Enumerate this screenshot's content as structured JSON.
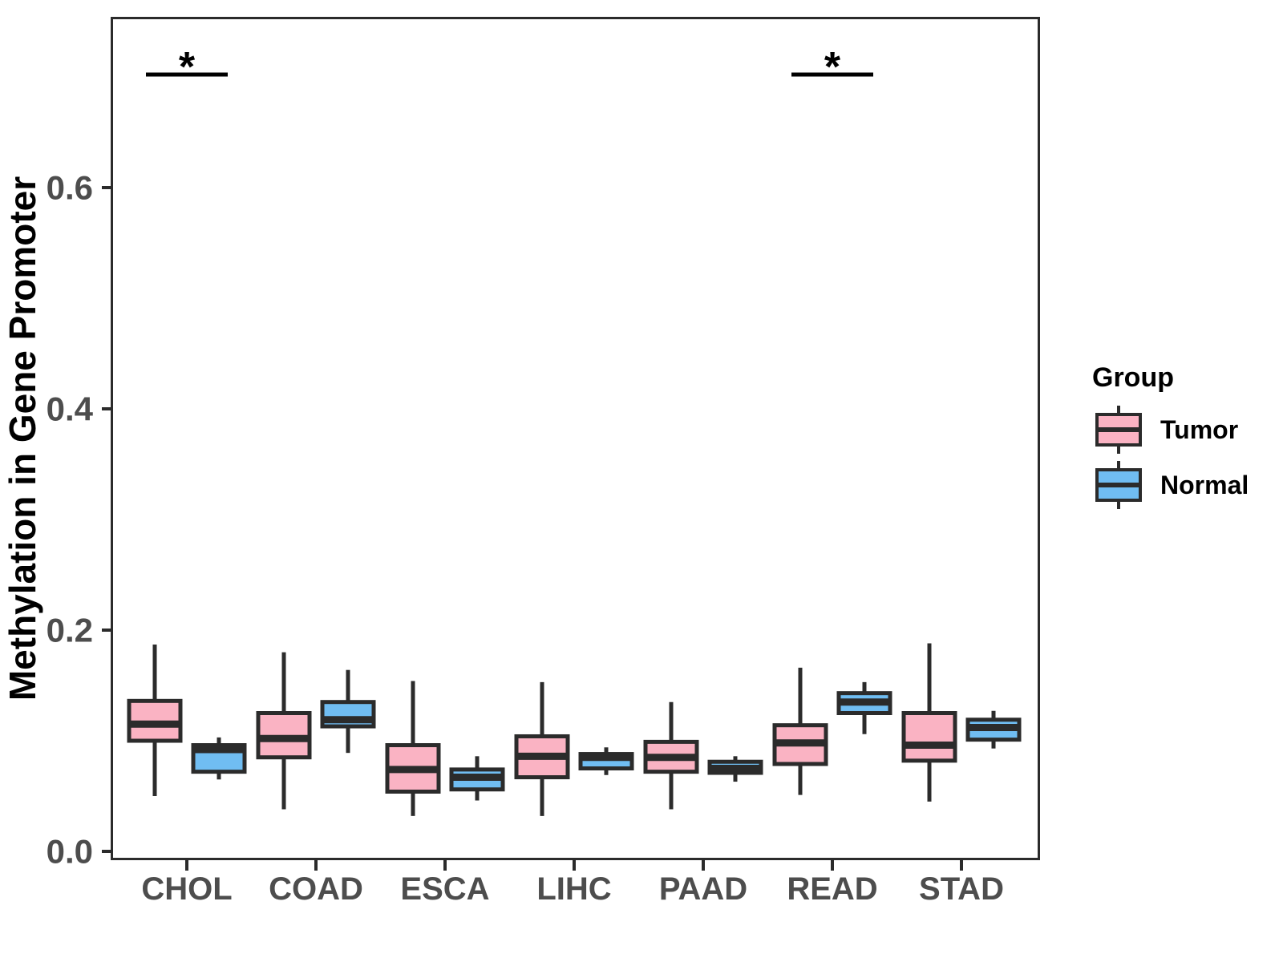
{
  "figure": {
    "background": "#ffffff"
  },
  "y_axis": {
    "title": "Methylation in Gene Promoter",
    "tick_labels": [
      "0.0",
      "0.2",
      "0.4",
      "0.6"
    ],
    "tick_values": [
      0.0,
      0.2,
      0.4,
      0.6
    ]
  },
  "x_axis": {
    "categories": [
      "CHOL",
      "COAD",
      "ESCA",
      "LIHC",
      "PAAD",
      "READ",
      "STAD"
    ]
  },
  "legend": {
    "title": "Group",
    "items": [
      {
        "label": "Tumor",
        "color": "#FAB3C3"
      },
      {
        "label": "Normal",
        "color": "#70BDF2"
      }
    ]
  },
  "colors": {
    "box_outline": "#2b2b2b",
    "panel_border": "#2b2b2b",
    "axis_text": "#4d4d4d",
    "significance": "#000000",
    "tumor_fill": "#FAB3C3",
    "normal_fill": "#70BDF2"
  },
  "chart_data": {
    "type": "boxplot",
    "title": "",
    "xlabel": "",
    "ylabel": "Methylation in Gene Promoter",
    "ylim": [
      0.0,
      0.76
    ],
    "yticks": [
      0.0,
      0.2,
      0.4,
      0.6
    ],
    "grid": false,
    "legend_position": "right",
    "categories": [
      "CHOL",
      "COAD",
      "ESCA",
      "LIHC",
      "PAAD",
      "READ",
      "STAD"
    ],
    "series": [
      {
        "name": "Tumor",
        "color": "#FAB3C3",
        "boxes": [
          {
            "whisker_low": 0.05,
            "q1": 0.1,
            "median": 0.115,
            "q3": 0.136,
            "whisker_high": 0.187
          },
          {
            "whisker_low": 0.038,
            "q1": 0.085,
            "median": 0.102,
            "q3": 0.125,
            "whisker_high": 0.18
          },
          {
            "whisker_low": 0.032,
            "q1": 0.054,
            "median": 0.074,
            "q3": 0.096,
            "whisker_high": 0.154
          },
          {
            "whisker_low": 0.032,
            "q1": 0.067,
            "median": 0.086,
            "q3": 0.104,
            "whisker_high": 0.153
          },
          {
            "whisker_low": 0.038,
            "q1": 0.072,
            "median": 0.085,
            "q3": 0.099,
            "whisker_high": 0.135
          },
          {
            "whisker_low": 0.051,
            "q1": 0.079,
            "median": 0.098,
            "q3": 0.114,
            "whisker_high": 0.166
          },
          {
            "whisker_low": 0.045,
            "q1": 0.082,
            "median": 0.096,
            "q3": 0.125,
            "whisker_high": 0.188
          }
        ]
      },
      {
        "name": "Normal",
        "color": "#70BDF2",
        "boxes": [
          {
            "whisker_low": 0.065,
            "q1": 0.072,
            "median": 0.092,
            "q3": 0.096,
            "whisker_high": 0.103
          },
          {
            "whisker_low": 0.089,
            "q1": 0.113,
            "median": 0.119,
            "q3": 0.135,
            "whisker_high": 0.164
          },
          {
            "whisker_low": 0.046,
            "q1": 0.056,
            "median": 0.067,
            "q3": 0.074,
            "whisker_high": 0.086
          },
          {
            "whisker_low": 0.069,
            "q1": 0.075,
            "median": 0.085,
            "q3": 0.088,
            "whisker_high": 0.094
          },
          {
            "whisker_low": 0.063,
            "q1": 0.071,
            "median": 0.075,
            "q3": 0.081,
            "whisker_high": 0.086
          },
          {
            "whisker_low": 0.106,
            "q1": 0.125,
            "median": 0.135,
            "q3": 0.143,
            "whisker_high": 0.153
          },
          {
            "whisker_low": 0.093,
            "q1": 0.101,
            "median": 0.112,
            "q3": 0.119,
            "whisker_high": 0.127
          }
        ]
      }
    ],
    "annotations": [
      {
        "category": "CHOL",
        "text": "*"
      },
      {
        "category": "READ",
        "text": "*"
      }
    ]
  }
}
